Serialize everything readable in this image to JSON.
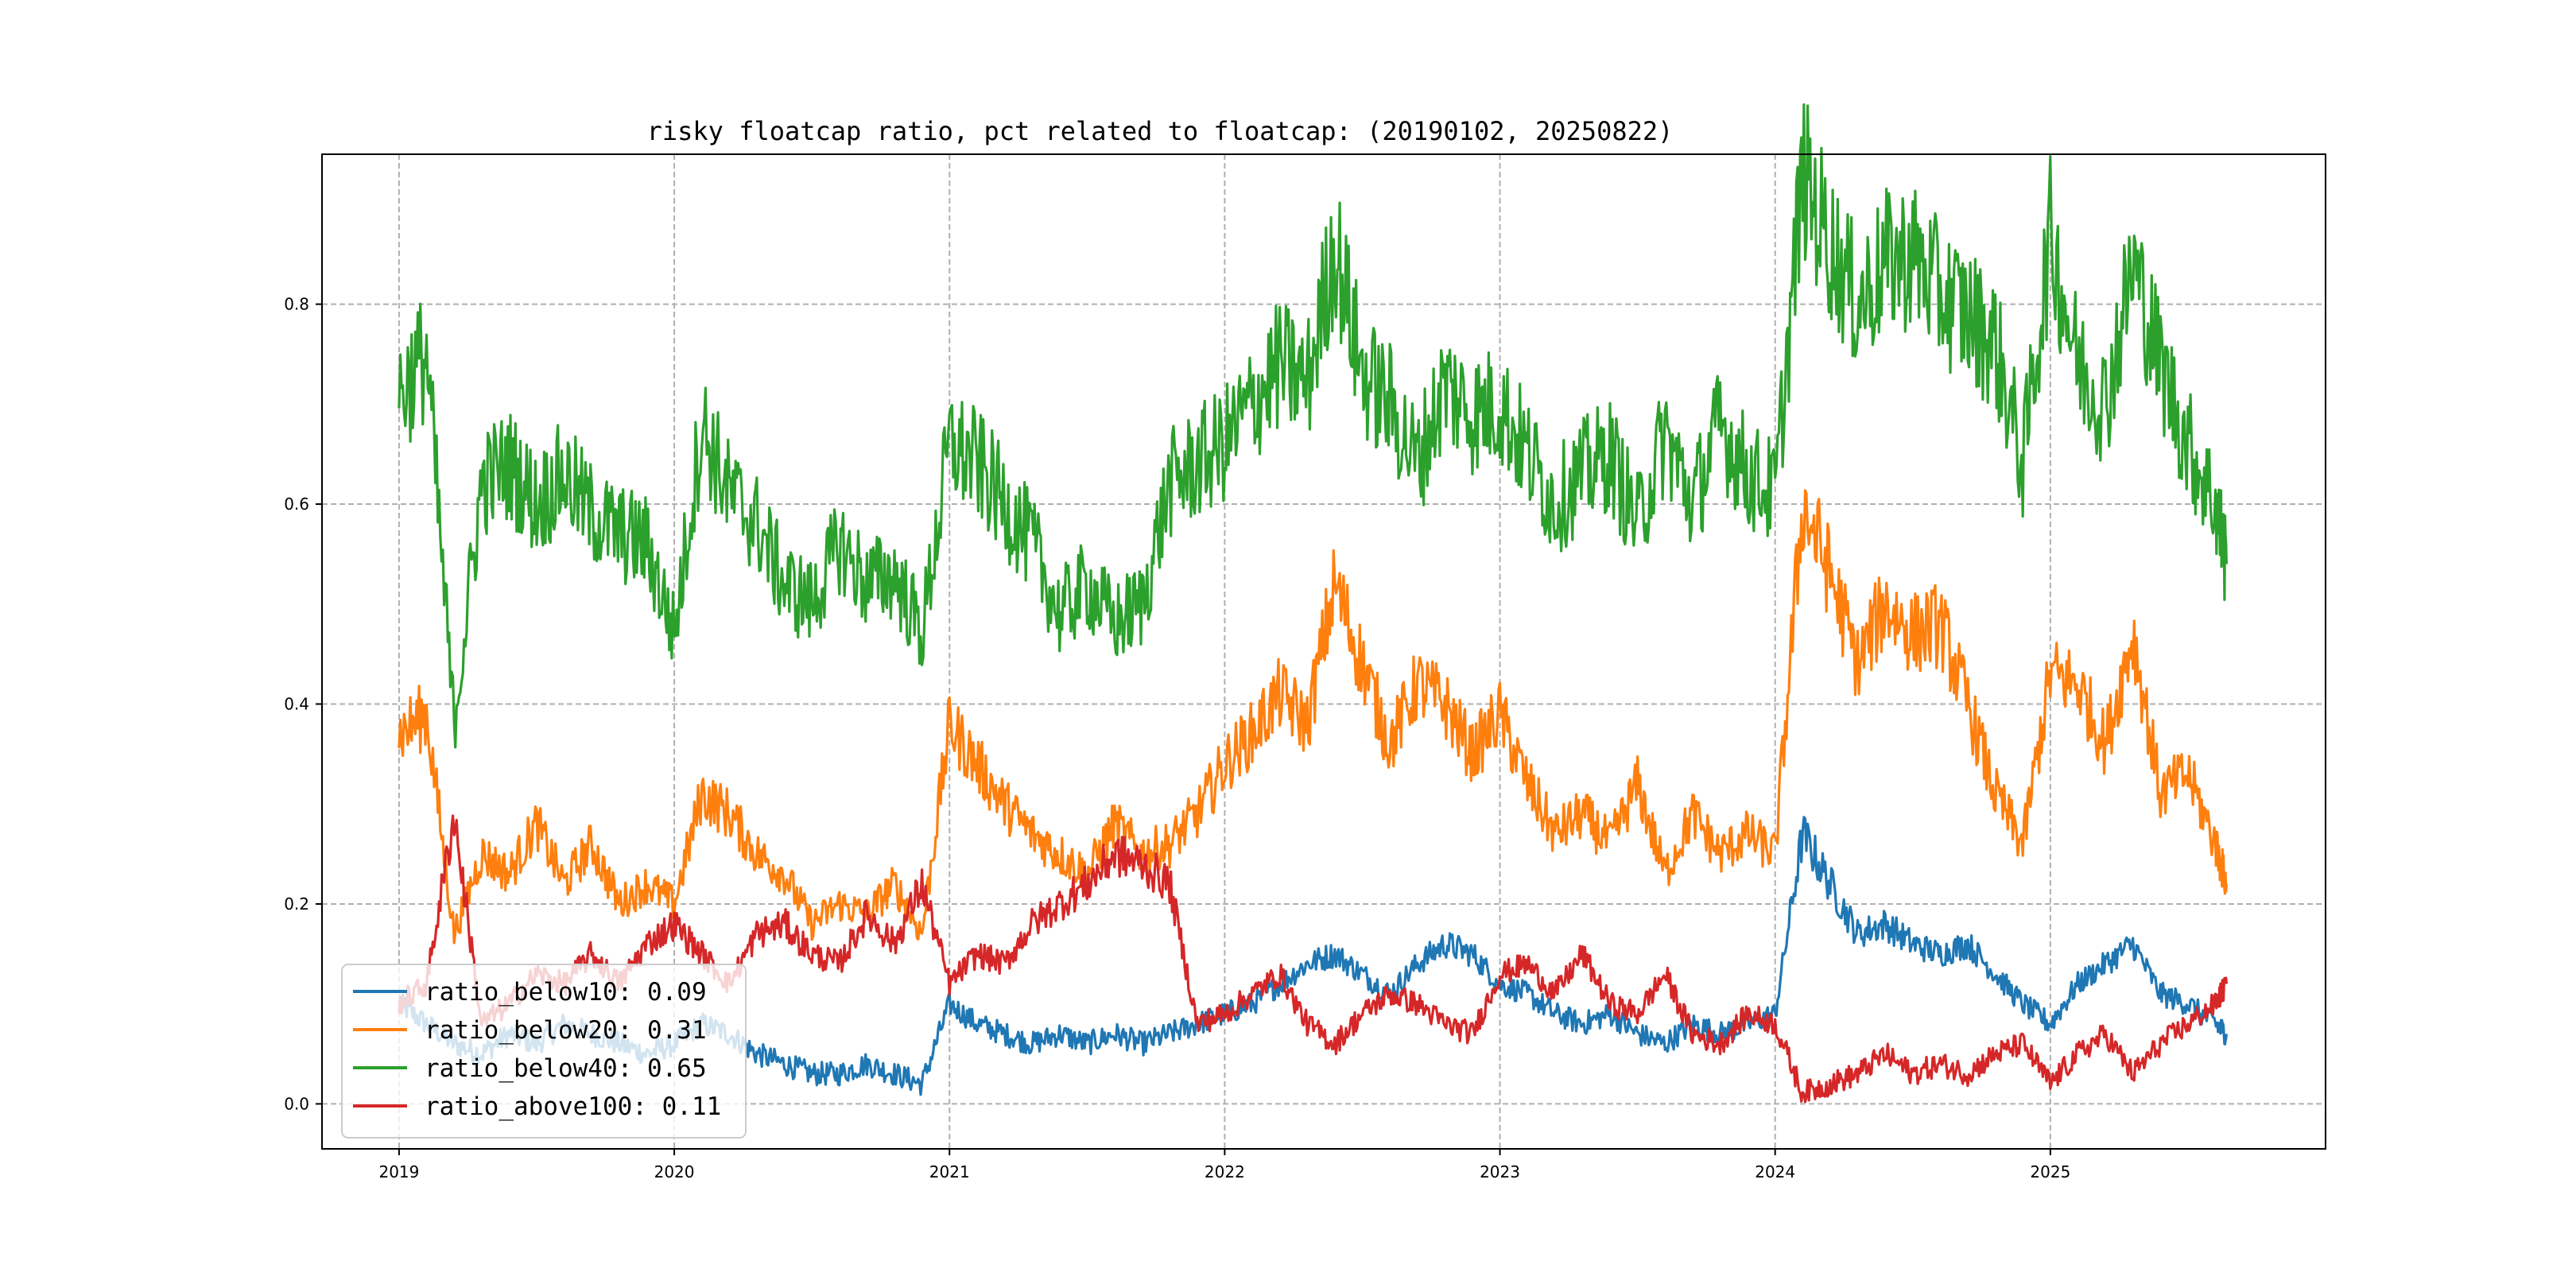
{
  "chart_data": {
    "type": "line",
    "title": "risky floatcap ratio, pct related to floatcap: (20190102, 20250822)",
    "xlabel": "",
    "ylabel": "",
    "x_ticks": [
      "2019",
      "2020",
      "2021",
      "2022",
      "2023",
      "2024",
      "2025"
    ],
    "y_ticks": [
      "0.0",
      "0.2",
      "0.4",
      "0.6",
      "0.8"
    ],
    "xlim": [
      2018.72,
      2026.0
    ],
    "ylim": [
      -0.045,
      0.95
    ],
    "grid": true,
    "legend_position": "lower-left",
    "x": [
      2019.0,
      2019.1,
      2019.2,
      2019.3,
      2019.4,
      2019.5,
      2019.6,
      2019.7,
      2019.8,
      2019.9,
      2020.0,
      2020.1,
      2020.2,
      2020.3,
      2020.4,
      2020.5,
      2020.6,
      2020.7,
      2020.8,
      2020.9,
      2021.0,
      2021.1,
      2021.2,
      2021.3,
      2021.4,
      2021.5,
      2021.6,
      2021.7,
      2021.8,
      2021.9,
      2022.0,
      2022.1,
      2022.2,
      2022.3,
      2022.4,
      2022.5,
      2022.6,
      2022.7,
      2022.8,
      2022.9,
      2023.0,
      2023.1,
      2023.2,
      2023.3,
      2023.4,
      2023.5,
      2023.6,
      2023.7,
      2023.8,
      2023.9,
      2024.0,
      2024.1,
      2024.2,
      2024.3,
      2024.4,
      2024.5,
      2024.6,
      2024.7,
      2024.8,
      2024.9,
      2025.0,
      2025.1,
      2025.2,
      2025.3,
      2025.4,
      2025.5,
      2025.6,
      2025.64
    ],
    "series": [
      {
        "name": "ratio_below10",
        "legend_label": "ratio_below10: 0.09",
        "color": "#1f77b4",
        "values": [
          0.1,
          0.08,
          0.06,
          0.05,
          0.07,
          0.06,
          0.08,
          0.07,
          0.06,
          0.05,
          0.06,
          0.08,
          0.07,
          0.05,
          0.04,
          0.03,
          0.03,
          0.04,
          0.03,
          0.02,
          0.1,
          0.08,
          0.07,
          0.06,
          0.07,
          0.06,
          0.07,
          0.06,
          0.07,
          0.08,
          0.09,
          0.1,
          0.12,
          0.14,
          0.15,
          0.13,
          0.11,
          0.14,
          0.16,
          0.15,
          0.12,
          0.11,
          0.09,
          0.08,
          0.09,
          0.07,
          0.06,
          0.08,
          0.07,
          0.08,
          0.09,
          0.27,
          0.22,
          0.17,
          0.18,
          0.16,
          0.15,
          0.16,
          0.13,
          0.1,
          0.08,
          0.12,
          0.14,
          0.16,
          0.11,
          0.1,
          0.08,
          0.07
        ]
      },
      {
        "name": "ratio_below20",
        "legend_label": "ratio_below20: 0.31",
        "color": "#ff7f0e",
        "values": [
          0.37,
          0.39,
          0.17,
          0.25,
          0.23,
          0.28,
          0.22,
          0.26,
          0.2,
          0.22,
          0.2,
          0.31,
          0.29,
          0.25,
          0.23,
          0.18,
          0.2,
          0.19,
          0.22,
          0.17,
          0.38,
          0.34,
          0.3,
          0.27,
          0.25,
          0.23,
          0.28,
          0.25,
          0.26,
          0.29,
          0.34,
          0.37,
          0.41,
          0.38,
          0.52,
          0.44,
          0.36,
          0.42,
          0.4,
          0.35,
          0.39,
          0.32,
          0.27,
          0.29,
          0.26,
          0.32,
          0.23,
          0.29,
          0.25,
          0.27,
          0.25,
          0.6,
          0.53,
          0.44,
          0.5,
          0.47,
          0.48,
          0.4,
          0.31,
          0.26,
          0.43,
          0.42,
          0.36,
          0.47,
          0.31,
          0.33,
          0.26,
          0.22
        ]
      },
      {
        "name": "ratio_below40",
        "legend_label": "ratio_below40: 0.65",
        "color": "#2ca02c",
        "values": [
          0.71,
          0.75,
          0.38,
          0.62,
          0.64,
          0.6,
          0.63,
          0.59,
          0.57,
          0.56,
          0.47,
          0.68,
          0.61,
          0.58,
          0.52,
          0.5,
          0.56,
          0.52,
          0.53,
          0.47,
          0.66,
          0.64,
          0.6,
          0.56,
          0.49,
          0.52,
          0.48,
          0.5,
          0.62,
          0.64,
          0.66,
          0.7,
          0.74,
          0.72,
          0.86,
          0.73,
          0.7,
          0.64,
          0.72,
          0.69,
          0.7,
          0.65,
          0.6,
          0.63,
          0.65,
          0.58,
          0.67,
          0.6,
          0.68,
          0.63,
          0.61,
          0.93,
          0.86,
          0.8,
          0.84,
          0.85,
          0.81,
          0.79,
          0.76,
          0.64,
          0.87,
          0.74,
          0.7,
          0.84,
          0.74,
          0.66,
          0.6,
          0.54
        ]
      },
      {
        "name": "ratio_above100",
        "legend_label": "ratio_above100: 0.11",
        "color": "#d62728",
        "values": [
          0.1,
          0.12,
          0.29,
          0.08,
          0.1,
          0.13,
          0.12,
          0.15,
          0.12,
          0.16,
          0.18,
          0.15,
          0.12,
          0.17,
          0.18,
          0.15,
          0.14,
          0.19,
          0.16,
          0.22,
          0.12,
          0.15,
          0.14,
          0.18,
          0.2,
          0.22,
          0.25,
          0.24,
          0.22,
          0.08,
          0.09,
          0.11,
          0.13,
          0.08,
          0.06,
          0.09,
          0.11,
          0.1,
          0.08,
          0.07,
          0.13,
          0.14,
          0.11,
          0.15,
          0.1,
          0.09,
          0.13,
          0.07,
          0.06,
          0.09,
          0.08,
          0.01,
          0.02,
          0.03,
          0.05,
          0.03,
          0.04,
          0.03,
          0.05,
          0.06,
          0.02,
          0.05,
          0.07,
          0.03,
          0.06,
          0.08,
          0.1,
          0.12
        ]
      }
    ]
  }
}
